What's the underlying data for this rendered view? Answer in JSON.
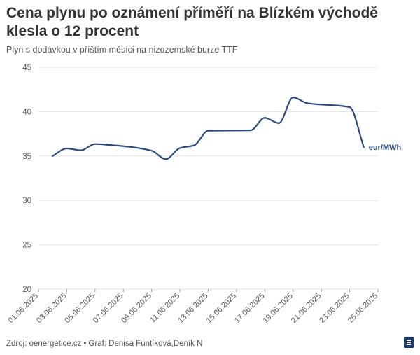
{
  "header": {
    "title": "Cena plynu po oznámení příměří na Blízkém východě klesla o 12 procent",
    "subtitle": "Plyn s dodávkou v příštím měsíci na nizozemské burze TTF"
  },
  "footer": {
    "source": "Zdroj: oenergetice.cz",
    "separator": "•",
    "credit": "Graf: Denisa Funtíková,Deník N"
  },
  "colors": {
    "line": "#2b4a80",
    "grid": "#e3e3e3",
    "axis_text": "#555555",
    "brand": "#1c3d7a"
  },
  "icons": {
    "brand": "denik-n-logo-icon"
  },
  "chart_data": {
    "type": "line",
    "title": "Cena plynu po oznámení příměří na Blízkém východě klesla o 12 procent",
    "subtitle": "Plyn s dodávkou v příštím měsíci na nizozemské burze TTF",
    "xlabel": "",
    "ylabel": "",
    "unit_label": "eur/MWh",
    "ylim": [
      20,
      45
    ],
    "yticks": [
      20,
      25,
      30,
      35,
      40,
      45
    ],
    "grid": true,
    "legend": "none",
    "x_ticks": [
      "01.06.2025",
      "03.06.2025",
      "05.06.2025",
      "07.06.2025",
      "09.06.2025",
      "11.06.2025",
      "13.06.2025",
      "15.06.2025",
      "17.06.2025",
      "19.06.2025",
      "21.06.2025",
      "23.06.2025",
      "25.06.2025"
    ],
    "series": [
      {
        "values": [
          {
            "x": "02.06.2025",
            "y": 35.0
          },
          {
            "x": "03.06.2025",
            "y": 35.85
          },
          {
            "x": "04.06.2025",
            "y": 35.65
          },
          {
            "x": "05.06.2025",
            "y": 36.35
          },
          {
            "x": "06.06.2025",
            "y": 36.25
          },
          {
            "x": "09.06.2025",
            "y": 35.6
          },
          {
            "x": "10.06.2025",
            "y": 34.65
          },
          {
            "x": "11.06.2025",
            "y": 35.9
          },
          {
            "x": "12.06.2025",
            "y": 36.2
          },
          {
            "x": "13.06.2025",
            "y": 37.85
          },
          {
            "x": "16.06.2025",
            "y": 37.9
          },
          {
            "x": "17.06.2025",
            "y": 39.3
          },
          {
            "x": "18.06.2025",
            "y": 38.7
          },
          {
            "x": "19.06.2025",
            "y": 41.6
          },
          {
            "x": "20.06.2025",
            "y": 40.95
          },
          {
            "x": "23.06.2025",
            "y": 40.5
          },
          {
            "x": "24.06.2025",
            "y": 36.0
          }
        ]
      }
    ]
  }
}
